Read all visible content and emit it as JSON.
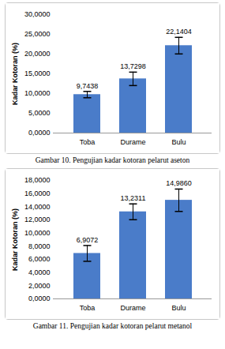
{
  "chart_data": [
    {
      "type": "bar",
      "caption": "Gambar 10. Pengujian kadar kotoran pelarut aseton",
      "y_label": "Kadar Kotoran (%)",
      "categories": [
        "Toba",
        "Durame",
        "Bulu"
      ],
      "values": [
        9.7438,
        13.7298,
        22.1404
      ],
      "value_labels": [
        "9,7438",
        "13,7298",
        "22,1404"
      ],
      "errors": [
        0.8,
        1.7,
        2.1
      ],
      "color": "#4a7cc9",
      "data_labels": true,
      "grid": false,
      "ylim": [
        0,
        30
      ],
      "yticks": [
        {
          "value": 0,
          "label": "0,0000"
        },
        {
          "value": 5,
          "label": "5,0000"
        },
        {
          "value": 10,
          "label": "10,0000"
        },
        {
          "value": 15,
          "label": "15,0000"
        },
        {
          "value": 20,
          "label": "20,0000"
        },
        {
          "value": 25,
          "label": "25,0000"
        },
        {
          "value": 30,
          "label": "30,0000"
        }
      ]
    },
    {
      "type": "bar",
      "caption": "Gambar 11. Pengujian kadar kotoran pelarut metanol",
      "y_label": "Kadar Kotoran (%)",
      "categories": [
        "Toba",
        "Durame",
        "Bulu"
      ],
      "values": [
        6.9072,
        13.2311,
        14.986
      ],
      "value_labels": [
        "6,9072",
        "13,2311",
        "14,9860"
      ],
      "errors": [
        1.2,
        1.2,
        1.7
      ],
      "color": "#4a7cc9",
      "data_labels": true,
      "grid": false,
      "ylim": [
        0,
        18
      ],
      "yticks": [
        {
          "value": 0,
          "label": "0,0000"
        },
        {
          "value": 2,
          "label": "2,0000"
        },
        {
          "value": 4,
          "label": "4,0000"
        },
        {
          "value": 6,
          "label": "6,0000"
        },
        {
          "value": 8,
          "label": "8,0000"
        },
        {
          "value": 10,
          "label": "10,0000"
        },
        {
          "value": 12,
          "label": "12,0000"
        },
        {
          "value": 14,
          "label": "14,0000"
        },
        {
          "value": 16,
          "label": "16,0000"
        },
        {
          "value": 18,
          "label": "18,0000"
        }
      ]
    }
  ]
}
